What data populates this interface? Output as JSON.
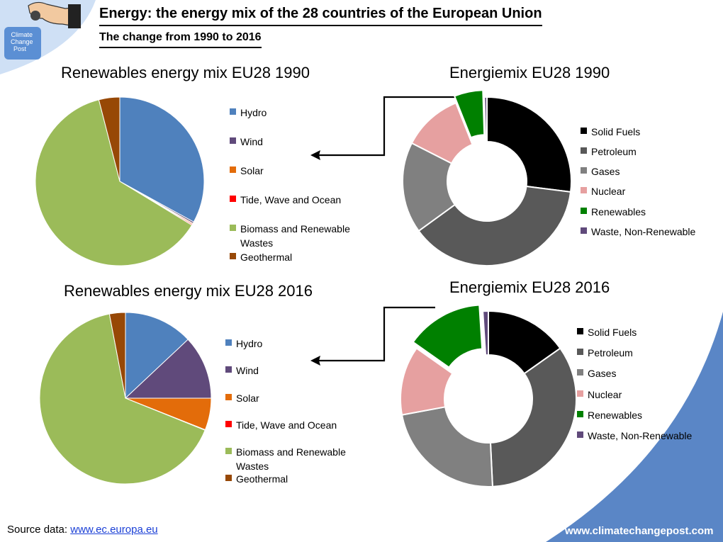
{
  "header": {
    "title": "Energy: the energy mix of the 28 countries of the European Union",
    "subtitle": "The change from 1990 to 2016"
  },
  "logo": {
    "text": "Climate Change Post",
    "colors": {
      "blue": "#5b8fd4",
      "light": "#cfe0f5",
      "white": "#ffffff"
    }
  },
  "footer": {
    "source_label": "Source data:",
    "source_link": "www.ec.europa.eu",
    "website": "www.climatechangepost.com"
  },
  "colors": {
    "corner_blue": "#5a86c6",
    "arrow": "#000000",
    "link": "#1a3fd6"
  },
  "chart_data": [
    {
      "type": "pie",
      "title": "Renewables energy mix EU28 1990",
      "categories": [
        "Hydro",
        "Wind",
        "Solar",
        "Tide, Wave and Ocean",
        "Biomass and Renewable Wastes",
        "Geothermal"
      ],
      "values": [
        33.0,
        0.3,
        0.2,
        0.2,
        62.3,
        4.0
      ],
      "colors": [
        "#4f81bd",
        "#604a7b",
        "#e36c0a",
        "#ff0000",
        "#9bbb59",
        "#974806"
      ]
    },
    {
      "type": "pie",
      "title": "Energiemix EU28 1990",
      "subtype": "donut",
      "categories": [
        "Solid Fuels",
        "Petroleum",
        "Gases",
        "Nuclear",
        "Renewables",
        "Waste, Non-Renewable"
      ],
      "values": [
        27.0,
        38.0,
        17.5,
        11.5,
        5.5,
        0.5
      ],
      "exploded": [
        "Renewables"
      ],
      "colors": [
        "#000000",
        "#595959",
        "#808080",
        "#e6a0a0",
        "#008000",
        "#604a7b"
      ]
    },
    {
      "type": "pie",
      "title": "Renewables energy mix EU28 2016",
      "categories": [
        "Hydro",
        "Wind",
        "Solar",
        "Tide, Wave and Ocean",
        "Biomass and Renewable Wastes",
        "Geothermal"
      ],
      "values": [
        13.0,
        12.0,
        6.0,
        0.1,
        65.9,
        3.0
      ],
      "colors": [
        "#4f81bd",
        "#604a7b",
        "#e36c0a",
        "#ff0000",
        "#9bbb59",
        "#974806"
      ]
    },
    {
      "type": "pie",
      "title": "Energiemix EU28 2016",
      "subtype": "donut",
      "categories": [
        "Solid Fuels",
        "Petroleum",
        "Gases",
        "Nuclear",
        "Renewables",
        "Waste, Non-Renewable"
      ],
      "values": [
        15.0,
        33.5,
        22.5,
        12.5,
        14.0,
        1.0
      ],
      "exploded": [
        "Renewables"
      ],
      "colors": [
        "#000000",
        "#595959",
        "#808080",
        "#e6a0a0",
        "#008000",
        "#604a7b"
      ]
    }
  ]
}
